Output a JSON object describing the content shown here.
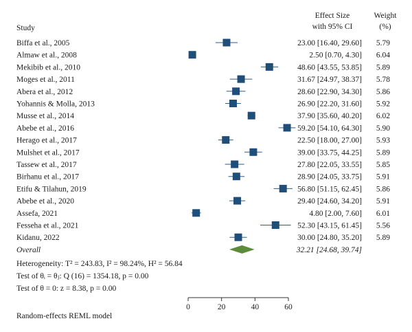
{
  "chart_data": {
    "type": "forest",
    "header": {
      "study": "Study",
      "effect_line1": "Effect Size",
      "effect_line2": "with 95% CI",
      "weight_line1": "Weight",
      "weight_line2": "(%)"
    },
    "studies": [
      {
        "name": "Biffa et al., 2005",
        "es": 23.0,
        "lo": 16.4,
        "hi": 29.6,
        "ci_text": "23.00 [16.40, 29.60]",
        "weight": "5.79"
      },
      {
        "name": "Almaw et al., 2008",
        "es": 2.5,
        "lo": 0.7,
        "hi": 4.3,
        "ci_text": "2.50 [0.70, 4.30]",
        "weight": "6.04"
      },
      {
        "name": "Mekibib et al., 2010",
        "es": 48.6,
        "lo": 43.55,
        "hi": 53.85,
        "ci_text": "48.60 [43.55, 53.85]",
        "weight": "5.89"
      },
      {
        "name": "Moges et al., 2011",
        "es": 31.67,
        "lo": 24.97,
        "hi": 38.37,
        "ci_text": "31.67 [24.97, 38.37]",
        "weight": "5.78"
      },
      {
        "name": "Abera et al., 2012",
        "es": 28.6,
        "lo": 22.9,
        "hi": 34.3,
        "ci_text": "28.60 [22.90, 34.30]",
        "weight": "5.86"
      },
      {
        "name": "Yohannis & Molla, 2013",
        "es": 26.9,
        "lo": 22.2,
        "hi": 31.6,
        "ci_text": "26.90 [22.20, 31.60]",
        "weight": "5.92"
      },
      {
        "name": "Musse et al., 2014",
        "es": 37.9,
        "lo": 35.6,
        "hi": 40.2,
        "ci_text": "37.90 [35.60, 40.20]",
        "weight": "6.02"
      },
      {
        "name": "Abebe et al., 2016",
        "es": 59.2,
        "lo": 54.1,
        "hi": 64.3,
        "ci_text": "59.20 [54.10, 64.30]",
        "weight": "5.90"
      },
      {
        "name": "Herago et al., 2017",
        "es": 22.5,
        "lo": 18.0,
        "hi": 27.0,
        "ci_text": "22.50 [18.00, 27.00]",
        "weight": "5.93"
      },
      {
        "name": "Mulshet et al., 2017",
        "es": 39.0,
        "lo": 33.75,
        "hi": 44.25,
        "ci_text": "39.00 [33.75, 44.25]",
        "weight": "5.89"
      },
      {
        "name": "Tassew et al., 2017",
        "es": 27.8,
        "lo": 22.05,
        "hi": 33.55,
        "ci_text": "27.80 [22.05, 33.55]",
        "weight": "5.85"
      },
      {
        "name": "Birhanu et al., 2017",
        "es": 28.9,
        "lo": 24.05,
        "hi": 33.75,
        "ci_text": "28.90 [24.05, 33.75]",
        "weight": "5.91"
      },
      {
        "name": "Etifu & Tilahun, 2019",
        "es": 56.8,
        "lo": 51.15,
        "hi": 62.45,
        "ci_text": "56.80 [51.15, 62.45]",
        "weight": "5.86"
      },
      {
        "name": "Abebe et al., 2020",
        "es": 29.4,
        "lo": 24.6,
        "hi": 34.2,
        "ci_text": "29.40 [24.60, 34.20]",
        "weight": "5.91"
      },
      {
        "name": "Assefa, 2021",
        "es": 4.8,
        "lo": 2.0,
        "hi": 7.6,
        "ci_text": "4.80 [2.00, 7.60]",
        "weight": "6.01"
      },
      {
        "name": "Fesseha et al., 2021",
        "es": 52.3,
        "lo": 43.15,
        "hi": 61.45,
        "ci_text": "52.30 [43.15, 61.45]",
        "weight": "5.56"
      },
      {
        "name": "Kidanu, 2022",
        "es": 30.0,
        "lo": 24.8,
        "hi": 35.2,
        "ci_text": "30.00 [24.80, 35.20]",
        "weight": "5.89"
      }
    ],
    "overall": {
      "label": "Overall",
      "es": 32.21,
      "lo": 24.68,
      "hi": 39.74,
      "ci_text": "32.21 [24.68, 39.74]"
    },
    "stats": {
      "heterogeneity": "Heterogeneity: T² = 243.83, I² = 98.24%, H² = 56.84",
      "test_equal": "Test of θᵢ = θⱼ: Q (16) = 1354.18, p = 0.00",
      "test_zero": "Test of θ = 0: z = 8.38, p = 0.00"
    },
    "x_axis": {
      "ticks": [
        0,
        20,
        40,
        60
      ],
      "range": [
        0,
        60
      ]
    },
    "footnote": "Random-effects REML model",
    "colors": {
      "box": "#1f4e79",
      "ci": "#2e5a8a",
      "diamond": "#5b8c3a"
    }
  }
}
